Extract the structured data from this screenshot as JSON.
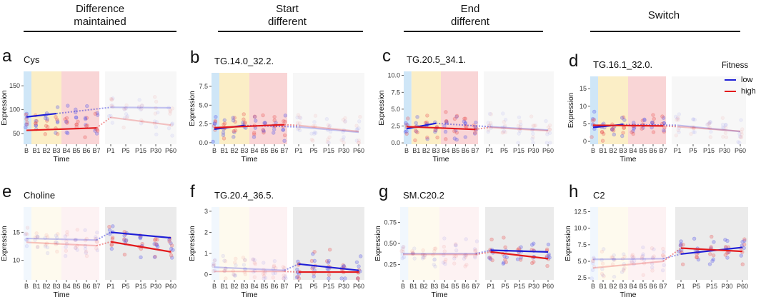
{
  "columns": [
    "Difference\nmaintained",
    "Start\ndifferent",
    "End\ndifferent",
    "Switch"
  ],
  "legend": {
    "title": "Fitness",
    "items": [
      {
        "label": "low",
        "color": "#1f1fd6"
      },
      {
        "label": "high",
        "color": "#e31a1c"
      }
    ]
  },
  "colors": {
    "low": "#1f1fd6",
    "high": "#e31a1c",
    "phase_B": "#cfe6f7",
    "phase_B13": "#fbeec6",
    "phase_B47": "#f9d5d6",
    "post_bg": "#ebebeb"
  },
  "chart_data": [
    {
      "type": "scatter",
      "letter": "a",
      "title": "Cys",
      "ylabel": "Expression",
      "xlabel": "Time",
      "ylim": [
        28,
        180
      ],
      "yticks": [
        50,
        100,
        150
      ],
      "yticklabels": [
        "50",
        "100",
        "150"
      ],
      "active": "left",
      "left_categories": [
        "B",
        "B1",
        "B2",
        "B3",
        "B4",
        "B5",
        "B6",
        "B7"
      ],
      "right_categories": [
        "P1",
        "P5",
        "P15",
        "P30",
        "P60"
      ],
      "series": [
        {
          "name": "low",
          "left_line": [
            85,
            92
          ],
          "right_line": [
            105,
            104
          ]
        },
        {
          "name": "high",
          "left_line": [
            57,
            62
          ],
          "right_line": [
            84,
            68
          ]
        }
      ]
    },
    {
      "type": "scatter",
      "letter": "b",
      "title": "TG.14.0_32.2.",
      "ylabel": "Expression",
      "xlabel": "Time",
      "ylim": [
        -0.2,
        9.3
      ],
      "yticks": [
        0,
        2.5,
        5,
        7.5
      ],
      "yticklabels": [
        "0.0",
        "2.5",
        "5.0",
        "7.5"
      ],
      "active": "left",
      "left_categories": [
        "B",
        "B1",
        "B2",
        "B3",
        "B4",
        "B5",
        "B6",
        "B7"
      ],
      "right_categories": [
        "P1",
        "P5",
        "P15",
        "P30",
        "P60"
      ],
      "series": [
        {
          "name": "low",
          "left_line": [
            1.8,
            2.3
          ],
          "right_line": [
            2.1,
            1.4
          ]
        },
        {
          "name": "high",
          "left_line": [
            2.0,
            2.4
          ],
          "right_line": [
            2.3,
            1.5
          ]
        }
      ]
    },
    {
      "type": "scatter",
      "letter": "c",
      "title": "TG.20.5_34.1.",
      "ylabel": "Expression",
      "xlabel": "Time",
      "ylim": [
        -0.2,
        10.6
      ],
      "yticks": [
        0,
        2.5,
        5,
        7.5,
        10
      ],
      "yticklabels": [
        "0.0",
        "2.5",
        "5.0",
        "7.5",
        "10.0"
      ],
      "active": "left",
      "left_categories": [
        "B",
        "B1",
        "B2",
        "B3",
        "B4",
        "B5",
        "B6",
        "B7"
      ],
      "right_categories": [
        "P1",
        "P5",
        "P15",
        "P30",
        "P60"
      ],
      "series": [
        {
          "name": "low",
          "left_line": [
            2.1,
            2.9
          ],
          "right_line": [
            2.4,
            1.9
          ]
        },
        {
          "name": "high",
          "left_line": [
            2.4,
            2.0
          ],
          "right_line": [
            2.3,
            1.8
          ]
        }
      ]
    },
    {
      "type": "scatter",
      "letter": "d",
      "title": "TG.16.1_32.0.",
      "ylabel": "Expression",
      "xlabel": "Time",
      "ylim": [
        -0.8,
        18.5
      ],
      "yticks": [
        0,
        5,
        10,
        15
      ],
      "yticklabels": [
        "0",
        "5",
        "10",
        "15"
      ],
      "active": "left",
      "left_categories": [
        "B",
        "B1",
        "B2",
        "B3",
        "B4",
        "B5",
        "B6",
        "B7"
      ],
      "right_categories": [
        "P1",
        "P5",
        "P15",
        "P30",
        "P60"
      ],
      "series": [
        {
          "name": "low",
          "left_line": [
            4.0,
            4.8
          ],
          "right_line": [
            4.6,
            2.8
          ]
        },
        {
          "name": "high",
          "left_line": [
            4.6,
            4.4
          ],
          "right_line": [
            4.2,
            2.9
          ]
        }
      ]
    },
    {
      "type": "scatter",
      "letter": "e",
      "title": "Choline",
      "ylabel": "Expression",
      "xlabel": "Time",
      "ylim": [
        6.5,
        19.5
      ],
      "yticks": [
        10,
        15
      ],
      "yticklabels": [
        "10",
        "15"
      ],
      "active": "right",
      "left_categories": [
        "B",
        "B1",
        "B2",
        "B3",
        "B4",
        "B5",
        "B6",
        "B7"
      ],
      "right_categories": [
        "P1",
        "P5",
        "P15",
        "P30",
        "P60"
      ],
      "series": [
        {
          "name": "low",
          "left_line": [
            13.9,
            13.6
          ],
          "right_line": [
            15.0,
            14.0
          ]
        },
        {
          "name": "high",
          "left_line": [
            13.2,
            12.6
          ],
          "right_line": [
            13.3,
            11.5
          ]
        }
      ]
    },
    {
      "type": "scatter",
      "letter": "f",
      "title": "TG.20.4_36.5.",
      "ylabel": "Expression",
      "xlabel": "Time",
      "ylim": [
        -0.25,
        3.2
      ],
      "yticks": [
        0,
        1,
        2,
        3
      ],
      "yticklabels": [
        "0",
        "1",
        "2",
        "3"
      ],
      "active": "right",
      "left_categories": [
        "B",
        "B1",
        "B2",
        "B3",
        "B4",
        "B5",
        "B6",
        "B7"
      ],
      "right_categories": [
        "P1",
        "P5",
        "P15",
        "P30",
        "P60"
      ],
      "series": [
        {
          "name": "low",
          "left_line": [
            0.35,
            0.2
          ],
          "right_line": [
            0.5,
            0.2
          ]
        },
        {
          "name": "high",
          "left_line": [
            0.15,
            0.15
          ],
          "right_line": [
            0.12,
            0.12
          ]
        }
      ]
    },
    {
      "type": "scatter",
      "letter": "g",
      "title": "SM.C20.2",
      "ylabel": "Expression",
      "xlabel": "Time",
      "ylim": [
        0.07,
        0.93
      ],
      "yticks": [
        0.25,
        0.5,
        0.75
      ],
      "yticklabels": [
        "0.25",
        "0.50",
        "0.75"
      ],
      "active": "right",
      "left_categories": [
        "B",
        "B1",
        "B2",
        "B3",
        "B4",
        "B5",
        "B6",
        "B7"
      ],
      "right_categories": [
        "P1",
        "P5",
        "P15",
        "P30",
        "P60"
      ],
      "series": [
        {
          "name": "low",
          "left_line": [
            0.38,
            0.38
          ],
          "right_line": [
            0.42,
            0.4
          ]
        },
        {
          "name": "high",
          "left_line": [
            0.37,
            0.37
          ],
          "right_line": [
            0.4,
            0.32
          ]
        }
      ]
    },
    {
      "type": "scatter",
      "letter": "h",
      "title": "C2",
      "ylabel": "Expression",
      "xlabel": "Time",
      "ylim": [
        2.2,
        13.2
      ],
      "yticks": [
        2.5,
        5,
        7.5,
        10,
        12.5
      ],
      "yticklabels": [
        "2.5",
        "5.0",
        "7.5",
        "10.0",
        "12.5"
      ],
      "active": "right",
      "left_categories": [
        "B",
        "B1",
        "B2",
        "B3",
        "B4",
        "B5",
        "B6",
        "B7"
      ],
      "right_categories": [
        "P1",
        "P5",
        "P15",
        "P30",
        "P60"
      ],
      "series": [
        {
          "name": "low",
          "left_line": [
            5.3,
            5.4
          ],
          "right_line": [
            6.1,
            7.1
          ]
        },
        {
          "name": "high",
          "left_line": [
            4.0,
            5.0
          ],
          "right_line": [
            7.0,
            6.5
          ]
        }
      ]
    }
  ]
}
